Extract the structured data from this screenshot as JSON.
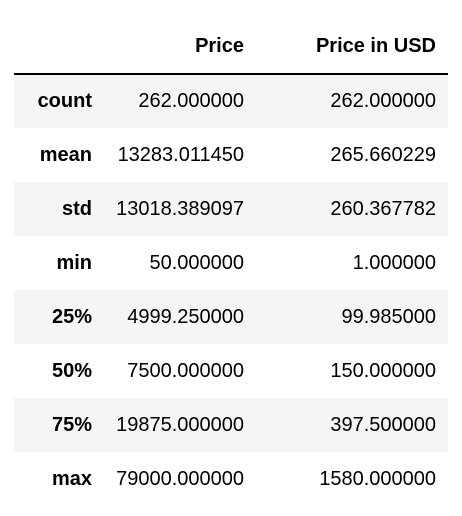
{
  "table": {
    "corner": "",
    "columns": [
      "Price",
      "Price in USD"
    ],
    "rows": [
      {
        "label": "count",
        "values": [
          "262.000000",
          "262.000000"
        ]
      },
      {
        "label": "mean",
        "values": [
          "13283.011450",
          "265.660229"
        ]
      },
      {
        "label": "std",
        "values": [
          "13018.389097",
          "260.367782"
        ]
      },
      {
        "label": "min",
        "values": [
          "50.000000",
          "1.000000"
        ]
      },
      {
        "label": "25%",
        "values": [
          "4999.250000",
          "99.985000"
        ]
      },
      {
        "label": "50%",
        "values": [
          "7500.000000",
          "150.000000"
        ]
      },
      {
        "label": "75%",
        "values": [
          "19875.000000",
          "397.500000"
        ]
      },
      {
        "label": "max",
        "values": [
          "79000.000000",
          "1580.000000"
        ]
      }
    ]
  }
}
